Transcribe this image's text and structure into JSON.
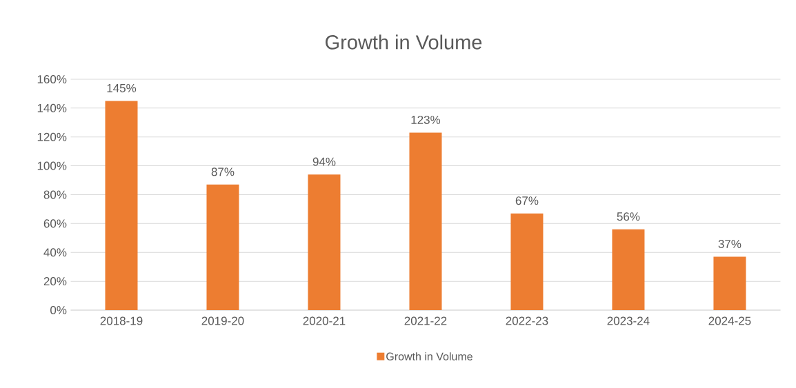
{
  "chart_data": {
    "type": "bar",
    "title": "Growth in Volume",
    "categories": [
      "2018-19",
      "2019-20",
      "2020-21",
      "2021-22",
      "2022-23",
      "2023-24",
      "2024-25"
    ],
    "series": [
      {
        "name": "Growth in Volume",
        "color": "#ed7d31",
        "values": [
          145,
          87,
          94,
          123,
          67,
          56,
          37
        ],
        "value_labels": [
          "145%",
          "87%",
          "94%",
          "123%",
          "67%",
          "56%",
          "37%"
        ]
      }
    ],
    "ylim": [
      0,
      160
    ],
    "yticks": [
      {
        "value": 0,
        "label": "0%"
      },
      {
        "value": 20,
        "label": "20%"
      },
      {
        "value": 40,
        "label": "40%"
      },
      {
        "value": 60,
        "label": "60%"
      },
      {
        "value": 80,
        "label": "80%"
      },
      {
        "value": 100,
        "label": "100%"
      },
      {
        "value": 120,
        "label": "120%"
      },
      {
        "value": 140,
        "label": "140%"
      },
      {
        "value": 160,
        "label": "160%"
      }
    ],
    "grid": "y",
    "legend": "bottom"
  }
}
